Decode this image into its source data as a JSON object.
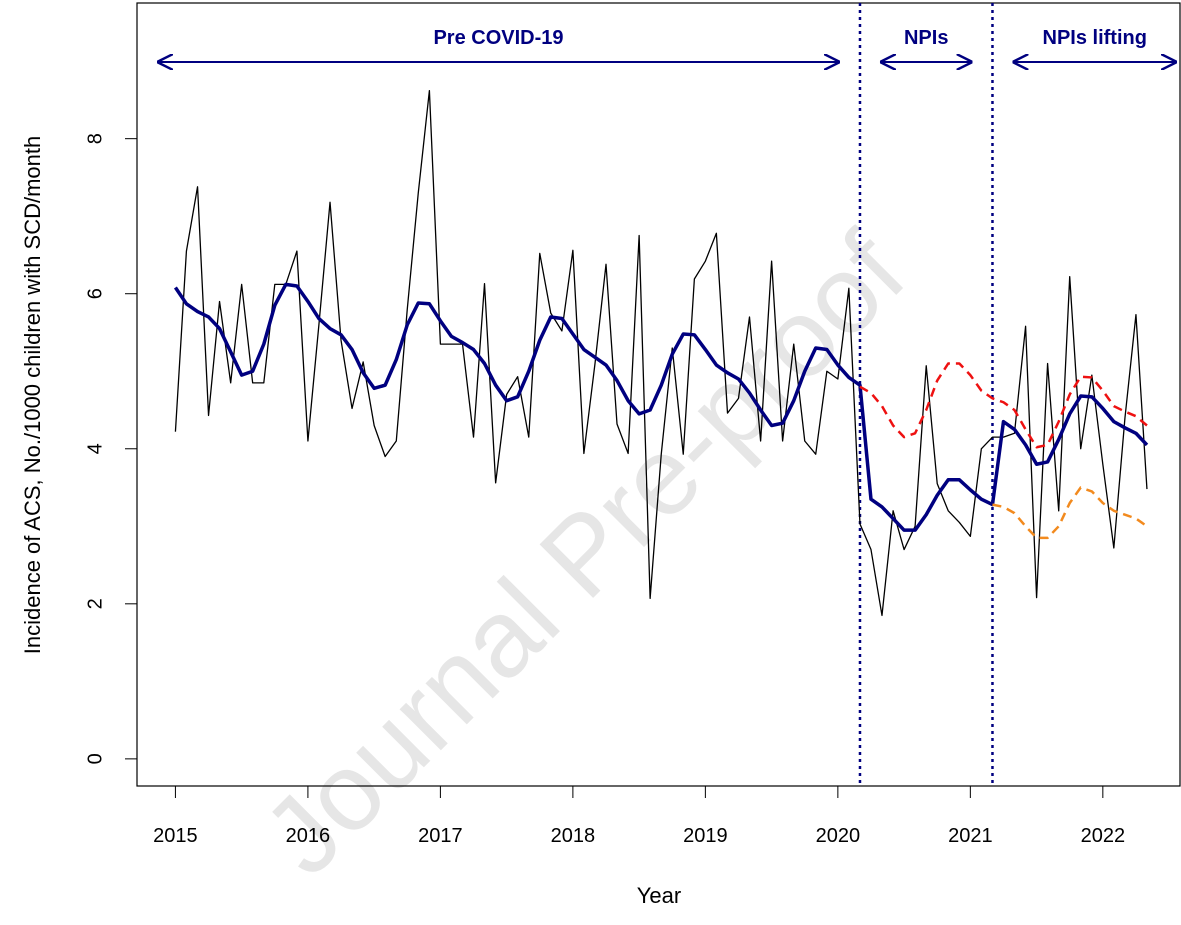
{
  "chart_data": {
    "type": "line",
    "xlabel": "Year",
    "ylabel": "Incidence of ACS, No./1000 children with SCD/month",
    "watermark": "Journal Pre-proof",
    "xlim": [
      2014.71,
      2022.59
    ],
    "ylim": [
      -0.35,
      9.75
    ],
    "xticks": [
      2015,
      2016,
      2017,
      2018,
      2019,
      2020,
      2021,
      2022
    ],
    "yticks": [
      0,
      2,
      4,
      6,
      8
    ],
    "vlines": [
      2020.167,
      2021.167
    ],
    "vline_color": "#000080",
    "periods": [
      {
        "label": "Pre COVID-19"
      },
      {
        "label": "NPIs"
      },
      {
        "label": "NPIs lifting"
      }
    ],
    "period_color": "#000080",
    "x": [
      2015,
      2015.083,
      2015.167,
      2015.25,
      2015.333,
      2015.417,
      2015.5,
      2015.583,
      2015.667,
      2015.75,
      2015.833,
      2015.917,
      2016,
      2016.083,
      2016.167,
      2016.25,
      2016.333,
      2016.417,
      2016.5,
      2016.583,
      2016.667,
      2016.75,
      2016.833,
      2016.917,
      2017,
      2017.083,
      2017.167,
      2017.25,
      2017.333,
      2017.417,
      2017.5,
      2017.583,
      2017.667,
      2017.75,
      2017.833,
      2017.917,
      2018,
      2018.083,
      2018.167,
      2018.25,
      2018.333,
      2018.417,
      2018.5,
      2018.583,
      2018.667,
      2018.75,
      2018.833,
      2018.917,
      2019,
      2019.083,
      2019.167,
      2019.25,
      2019.333,
      2019.417,
      2019.5,
      2019.583,
      2019.667,
      2019.75,
      2019.833,
      2019.917,
      2020,
      2020.083,
      2020.167,
      2020.25,
      2020.333,
      2020.417,
      2020.5,
      2020.583,
      2020.667,
      2020.75,
      2020.833,
      2020.917,
      2021,
      2021.083,
      2021.167,
      2021.25,
      2021.333,
      2021.417,
      2021.5,
      2021.583,
      2021.667,
      2021.75,
      2021.833,
      2021.917,
      2022,
      2022.083,
      2022.167,
      2022.25,
      2022.333
    ],
    "series": [
      {
        "color": "#000000",
        "style": "thin",
        "values": [
          4.22,
          6.55,
          7.38,
          4.43,
          5.9,
          4.85,
          6.12,
          4.85,
          4.85,
          6.12,
          6.12,
          6.55,
          4.1,
          5.6,
          7.18,
          5.4,
          4.52,
          5.12,
          4.3,
          3.9,
          4.1,
          5.8,
          7.3,
          8.62,
          5.35,
          5.35,
          5.35,
          4.15,
          6.13,
          3.56,
          4.7,
          4.93,
          4.15,
          6.52,
          5.75,
          5.52,
          6.56,
          3.94,
          5.1,
          6.38,
          4.32,
          3.94,
          6.75,
          2.07,
          3.93,
          5.3,
          3.93,
          6.19,
          6.42,
          6.78,
          4.46,
          4.65,
          5.7,
          4.1,
          6.42,
          4.1,
          5.35,
          4.1,
          3.93,
          5.0,
          4.9,
          6.07,
          3.03,
          2.7,
          1.85,
          3.2,
          2.7,
          3.0,
          5.07,
          3.55,
          3.2,
          3.05,
          2.87,
          4.0,
          4.15,
          4.15,
          4.2,
          5.58,
          2.08,
          5.1,
          3.2,
          6.22,
          4.0,
          4.95,
          3.8,
          2.72,
          4.4,
          5.73,
          3.48
        ]
      },
      {
        "color": "#000080",
        "style": "thick",
        "values": [
          6.08,
          5.87,
          5.77,
          5.7,
          5.55,
          5.25,
          4.95,
          5.0,
          5.35,
          5.85,
          6.12,
          6.1,
          5.9,
          5.68,
          5.55,
          5.47,
          5.28,
          4.98,
          4.78,
          4.82,
          5.15,
          5.6,
          5.88,
          5.87,
          5.65,
          5.45,
          5.37,
          5.28,
          5.1,
          4.82,
          4.62,
          4.67,
          5.0,
          5.4,
          5.7,
          5.68,
          5.48,
          5.28,
          5.18,
          5.08,
          4.88,
          4.62,
          4.45,
          4.5,
          4.82,
          5.22,
          5.48,
          5.47,
          5.28,
          5.08,
          4.98,
          4.9,
          4.72,
          4.5,
          4.3,
          4.33,
          4.62,
          5.0,
          5.3,
          5.28,
          5.08,
          4.92,
          4.82,
          3.35,
          3.25,
          3.1,
          2.95,
          2.95,
          3.15,
          3.4,
          3.6,
          3.6,
          3.47,
          3.35,
          3.28,
          4.35,
          4.25,
          4.05,
          3.8,
          3.83,
          4.12,
          4.45,
          4.68,
          4.67,
          4.52,
          4.35,
          4.27,
          4.2,
          4.05
        ]
      },
      {
        "color": "#ee1111",
        "style": "dashed",
        "values": [
          null,
          null,
          null,
          null,
          null,
          null,
          null,
          null,
          null,
          null,
          null,
          null,
          null,
          null,
          null,
          null,
          null,
          null,
          null,
          null,
          null,
          null,
          null,
          null,
          null,
          null,
          null,
          null,
          null,
          null,
          null,
          null,
          null,
          null,
          null,
          null,
          null,
          null,
          null,
          null,
          null,
          null,
          null,
          null,
          null,
          null,
          null,
          null,
          null,
          null,
          null,
          null,
          null,
          null,
          null,
          null,
          null,
          null,
          null,
          null,
          null,
          null,
          4.8,
          4.72,
          4.55,
          4.3,
          4.15,
          4.2,
          4.5,
          4.88,
          5.1,
          5.1,
          4.95,
          4.75,
          4.65,
          4.6,
          4.5,
          4.25,
          4.02,
          4.05,
          4.35,
          4.7,
          4.93,
          4.92,
          4.75,
          4.55,
          4.48,
          4.42,
          4.3
        ]
      },
      {
        "color": "#f28a1e",
        "style": "dashed",
        "values": [
          null,
          null,
          null,
          null,
          null,
          null,
          null,
          null,
          null,
          null,
          null,
          null,
          null,
          null,
          null,
          null,
          null,
          null,
          null,
          null,
          null,
          null,
          null,
          null,
          null,
          null,
          null,
          null,
          null,
          null,
          null,
          null,
          null,
          null,
          null,
          null,
          null,
          null,
          null,
          null,
          null,
          null,
          null,
          null,
          null,
          null,
          null,
          null,
          null,
          null,
          null,
          null,
          null,
          null,
          null,
          null,
          null,
          null,
          null,
          null,
          null,
          null,
          null,
          null,
          null,
          null,
          null,
          null,
          null,
          null,
          null,
          null,
          null,
          null,
          3.28,
          3.25,
          3.17,
          3.0,
          2.85,
          2.85,
          3.0,
          3.3,
          3.5,
          3.45,
          3.3,
          3.2,
          3.15,
          3.1,
          3.0
        ]
      }
    ]
  }
}
